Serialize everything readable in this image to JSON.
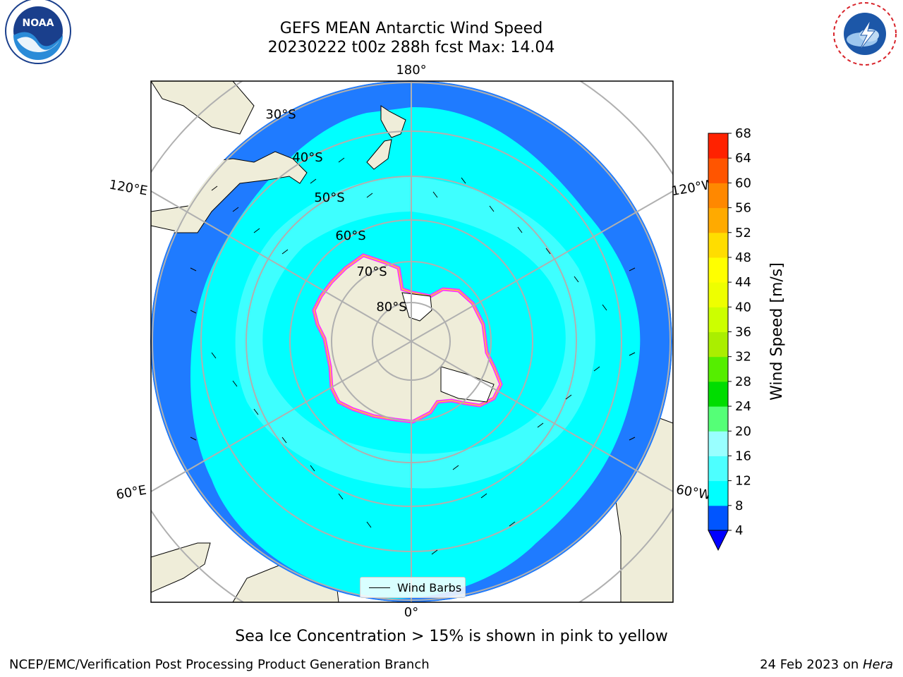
{
  "header": {
    "title": "GEFS MEAN Antarctic Wind Speed",
    "subtitle": "20230222 t00z 288h fcst   Max: 14.04"
  },
  "logos": {
    "left": {
      "name": "NOAA",
      "ring_text": "NATIONAL OCEANIC AND ATMOSPHERIC ADMINISTRATION · U.S. DEPARTMENT OF COMMERCE"
    },
    "right": {
      "ring_text": "NATIONAL WEATHER SERVICE"
    }
  },
  "map": {
    "projection": "south-polar-stereographic",
    "longitude_labels": {
      "top": "180°",
      "bottom": "0°",
      "upper_left": "120°E",
      "upper_right": "120°W",
      "lower_left": "60°E",
      "lower_right": "60°W"
    },
    "latitude_labels": [
      "30°S",
      "40°S",
      "50°S",
      "60°S",
      "70°S",
      "80°S"
    ],
    "legend": {
      "label": "Wind Barbs"
    },
    "colors": {
      "land": "#efedd9",
      "ocean_4_8": "#1f7bff",
      "ocean_8_12": "#00ffff",
      "ocean_12_16": "#4dffff",
      "ocean_16_20": "#99ffff",
      "ice_edge": "#ff33ff",
      "ice_inner": "#ffcc33"
    }
  },
  "colorbar": {
    "label": "Wind Speed [m/s]",
    "ticks": [
      "4",
      "8",
      "12",
      "16",
      "20",
      "24",
      "28",
      "32",
      "36",
      "40",
      "44",
      "48",
      "52",
      "56",
      "60",
      "64",
      "68"
    ],
    "colors": [
      "#0055ff",
      "#00ffff",
      "#4dffff",
      "#99ffff",
      "#55ff77",
      "#00dd00",
      "#55ee00",
      "#aaee00",
      "#ccff00",
      "#eeff00",
      "#ffff00",
      "#ffdd00",
      "#ffaa00",
      "#ff8800",
      "#ff5500",
      "#ff2200"
    ],
    "extend_color": "#0000ff"
  },
  "note": "Sea Ice Concentration > 15% is shown in pink to yellow",
  "footer": {
    "left": "NCEP/EMC/Verification Post Processing Product Generation Branch",
    "right_prefix": "24 Feb 2023 on ",
    "right_host": "Hera"
  }
}
